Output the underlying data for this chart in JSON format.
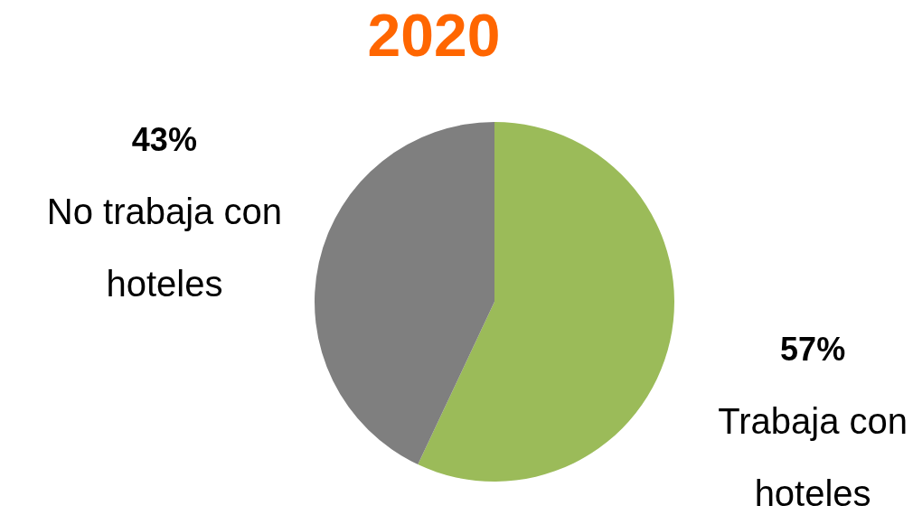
{
  "chart_data": {
    "type": "pie",
    "title": "2020",
    "categories": [
      "Trabaja con hoteles",
      "No trabaja con hoteles"
    ],
    "values": [
      57,
      43
    ],
    "colors": [
      "#9bbb59",
      "#7f7f7f"
    ],
    "value_labels": [
      "57%",
      "43%"
    ]
  }
}
